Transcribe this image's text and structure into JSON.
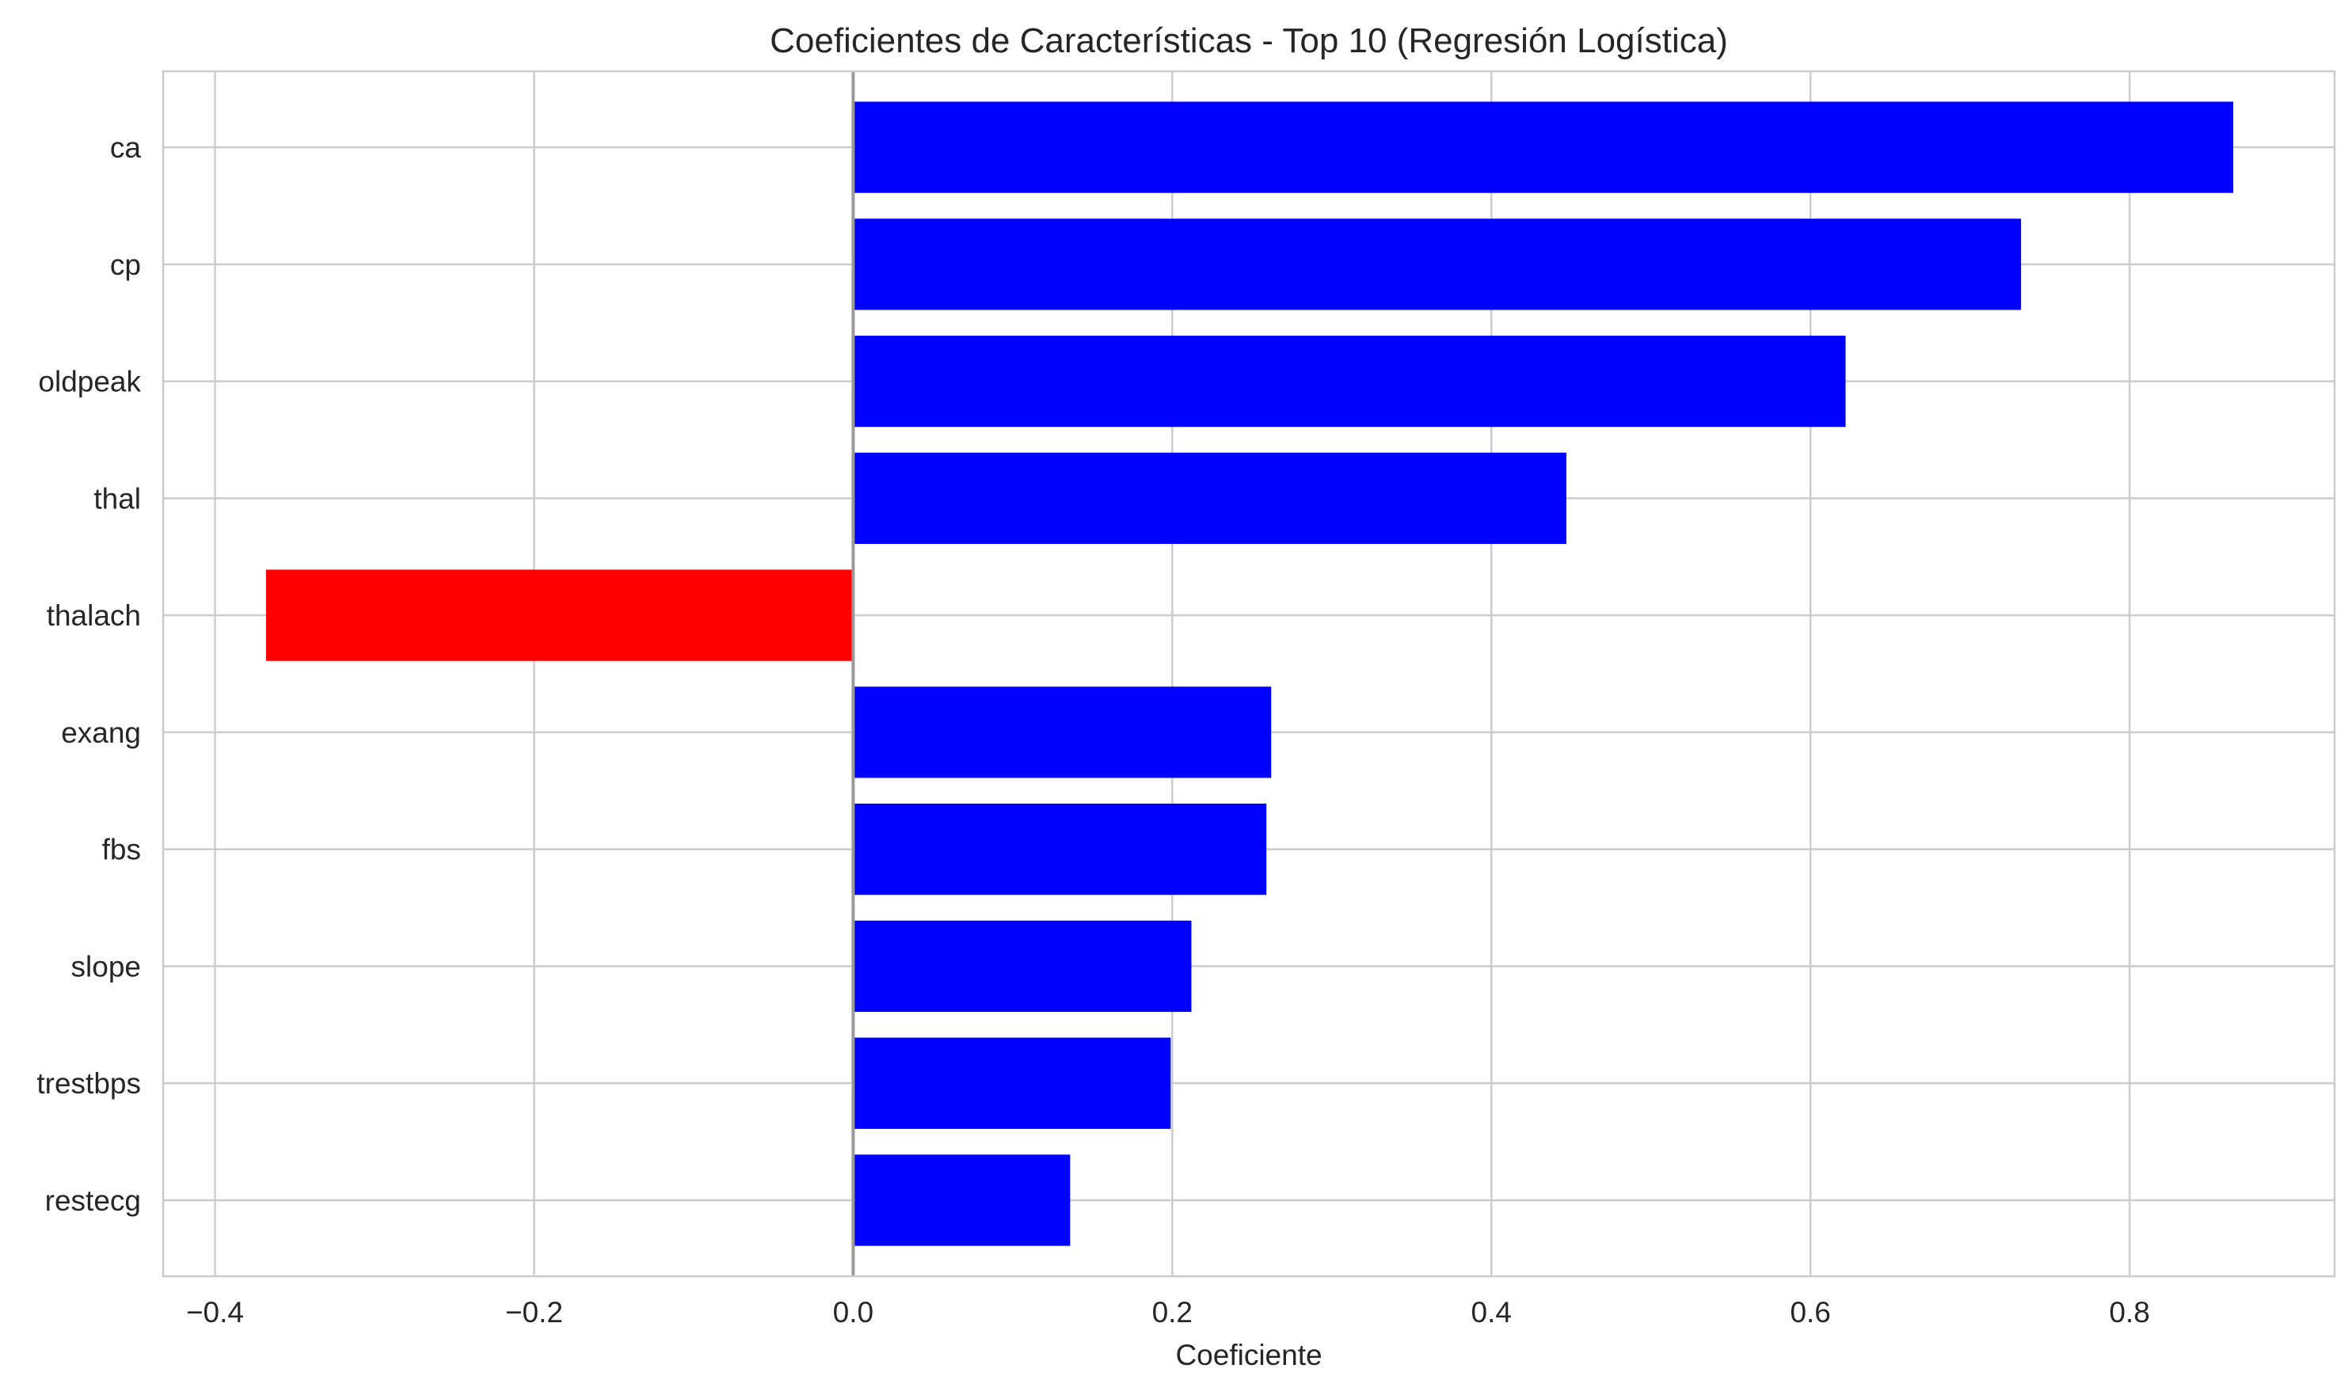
{
  "chart_data": {
    "type": "bar",
    "orientation": "horizontal",
    "title": "Coeficientes de Características - Top 10 (Regresión Logística)",
    "xlabel": "Coeficiente",
    "ylabel": "",
    "xlim": [
      -0.4325,
      0.9285
    ],
    "xticks": [
      -0.4,
      -0.2,
      0.0,
      0.2,
      0.4,
      0.6,
      0.8
    ],
    "xtick_labels": [
      "−0.4",
      "−0.2",
      "0.0",
      "0.2",
      "0.4",
      "0.6",
      "0.8"
    ],
    "grid": true,
    "reference_line_x": 0,
    "categories": [
      "ca",
      "cp",
      "oldpeak",
      "thal",
      "thalach",
      "exang",
      "fbs",
      "slope",
      "trestbps",
      "restecg"
    ],
    "values": [
      0.865,
      0.732,
      0.622,
      0.447,
      -0.368,
      0.262,
      0.259,
      0.212,
      0.199,
      0.136
    ],
    "positive_color": "#0000ff",
    "negative_color": "#ff0000"
  }
}
